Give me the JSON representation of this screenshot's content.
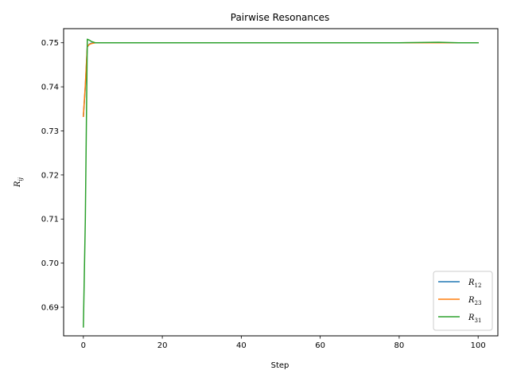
{
  "chart_data": {
    "type": "line",
    "title": "Pairwise Resonances",
    "xlabel": "Step",
    "ylabel": "R",
    "ylabel_sub": "ij",
    "xlim": [
      -5,
      105
    ],
    "ylim": [
      0.6835,
      0.7532
    ],
    "xticks": [
      0,
      20,
      40,
      60,
      80,
      100
    ],
    "yticks": [
      0.69,
      0.7,
      0.71,
      0.72,
      0.73,
      0.74,
      0.75
    ],
    "legend_position": "lower-right",
    "series": [
      {
        "name": "R",
        "name_sub": "12",
        "color": "#1f77b4",
        "x": [
          0,
          0.5,
          1,
          1.5,
          2,
          3,
          4,
          5,
          10,
          20,
          40,
          60,
          80,
          90,
          95,
          100
        ],
        "y": [
          0.7333,
          0.74,
          0.749,
          0.7497,
          0.7499,
          0.75,
          0.75,
          0.75,
          0.75,
          0.75,
          0.75,
          0.75,
          0.75,
          0.75,
          0.75,
          0.75
        ]
      },
      {
        "name": "R",
        "name_sub": "23",
        "color": "#ff7f0e",
        "x": [
          0,
          0.5,
          1,
          1.5,
          2,
          3,
          4,
          5,
          10,
          20,
          40,
          60,
          80,
          90,
          95,
          100
        ],
        "y": [
          0.7333,
          0.7405,
          0.7492,
          0.7496,
          0.7498,
          0.75,
          0.75,
          0.75,
          0.75,
          0.75,
          0.75,
          0.75,
          0.75,
          0.75,
          0.75,
          0.75
        ]
      },
      {
        "name": "R",
        "name_sub": "31",
        "color": "#2ca02c",
        "x": [
          0,
          0.5,
          1,
          1.5,
          2,
          3,
          4,
          5,
          10,
          20,
          40,
          60,
          80,
          90,
          95,
          100
        ],
        "y": [
          0.6855,
          0.71,
          0.7508,
          0.7506,
          0.7503,
          0.75,
          0.75,
          0.75,
          0.75,
          0.75,
          0.75,
          0.75,
          0.75,
          0.7501,
          0.75,
          0.75
        ]
      }
    ]
  }
}
